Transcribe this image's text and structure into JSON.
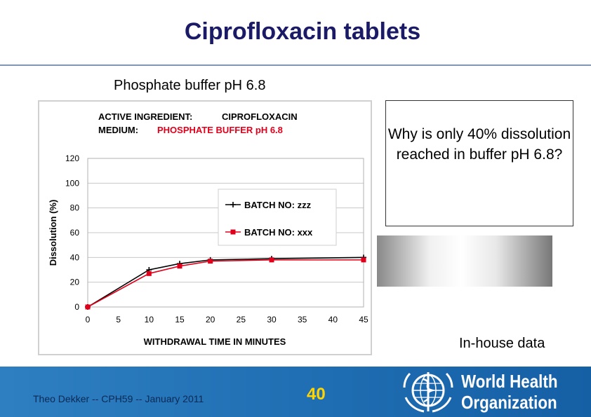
{
  "slide": {
    "title": "Ciprofloxacin tablets",
    "subtitle": "Phosphate buffer pH 6.8",
    "callout": "Why is only 40% dissolution reached in buffer pH 6.8?",
    "source_note": "In-house data"
  },
  "footer": {
    "presenter": "Theo Dekker -- CPH59 -- January 2011",
    "page_number": "40",
    "organization": "World Health Organization",
    "organization_line1": "World Health",
    "organization_line2": "Organization"
  },
  "chart_data": {
    "type": "line",
    "title_line1_label": "ACTIVE INGREDIENT:",
    "title_line1_value": "CIPROFLOXACIN",
    "title_line2_label": "MEDIUM:",
    "title_line2_value": "PHOSPHATE BUFFER pH 6.8",
    "xlabel": "WITHDRAWAL TIME IN MINUTES",
    "ylabel": "Dissolution (%)",
    "xlim": [
      0,
      45
    ],
    "ylim": [
      0,
      120
    ],
    "x_ticks": [
      0,
      5,
      10,
      15,
      20,
      25,
      30,
      35,
      40,
      45
    ],
    "y_ticks": [
      0,
      20,
      40,
      60,
      80,
      100,
      120
    ],
    "grid": "horizontal",
    "legend_position": "top-right",
    "series": [
      {
        "name": "BATCH NO: zzz",
        "color": "#000000",
        "marker": "plus",
        "x": [
          0,
          10,
          15,
          20,
          30,
          45
        ],
        "y": [
          0,
          30,
          35,
          38,
          39,
          40
        ]
      },
      {
        "name": "BATCH NO:  xxx",
        "color": "#e0001b",
        "marker": "square",
        "x": [
          0,
          10,
          15,
          20,
          30,
          45
        ],
        "y": [
          0,
          27,
          33,
          37,
          38,
          38
        ]
      }
    ]
  },
  "colors": {
    "title": "#1a1a66",
    "accent_red": "#e0001b",
    "footer_blue": "#1f6db2",
    "page_number": "#ffd400"
  }
}
